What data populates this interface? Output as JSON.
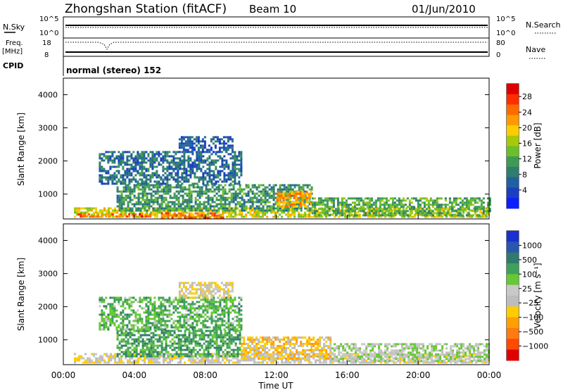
{
  "header": {
    "title": "Zhongshan Station (fitACF)",
    "beam": "Beam 10",
    "date": "01/Jun/2010"
  },
  "noise_panel": {
    "left_label": "N.Sky",
    "left_ticks": [
      "10^5",
      "10^0"
    ],
    "right_ticks": [
      "10^5",
      "10^0"
    ],
    "right_label": "N.Search"
  },
  "freq_panel": {
    "left_label_1": "Freq.",
    "left_label_2": "[MHz]",
    "left_ticks": [
      "18",
      "8"
    ],
    "right_ticks": [
      "80",
      "0"
    ],
    "right_label": "Nave"
  },
  "cpid": {
    "label": "CPID",
    "value": "normal (stereo) 152"
  },
  "chart_data": [
    {
      "type": "heatmap",
      "name": "power",
      "ylabel": "Slant Range [km]",
      "ylim": [
        250,
        4500
      ],
      "yticks": [
        "1000",
        "2000",
        "3000",
        "4000"
      ],
      "xlim_hours": [
        0,
        24
      ],
      "colorbar_label": "Power [dB]",
      "colorbar_ticks": [
        "28",
        "24",
        "20",
        "16",
        "12",
        "8",
        "4"
      ],
      "colorbar_colors": [
        "#dd0000",
        "#ff2d00",
        "#ff6a00",
        "#ff9a00",
        "#ffcc00",
        "#a8c80a",
        "#6bbf2a",
        "#3e9a55",
        "#2f7d6d",
        "#2060a0",
        "#1a3fc0",
        "#0a1eff"
      ],
      "regions": [
        {
          "x0": 0.6,
          "x1": 24,
          "y0": 300,
          "y1": 600,
          "value": 18
        },
        {
          "x0": 0.8,
          "x1": 5,
          "y0": 300,
          "y1": 420,
          "value": 26
        },
        {
          "x0": 5.5,
          "x1": 9,
          "y0": 300,
          "y1": 450,
          "value": 25
        },
        {
          "x0": 3,
          "x1": 14,
          "y0": 500,
          "y1": 1300,
          "value": 11
        },
        {
          "x0": 12,
          "x1": 14,
          "y0": 600,
          "y1": 1100,
          "value": 22
        },
        {
          "x0": 14,
          "x1": 24,
          "y0": 350,
          "y1": 900,
          "value": 13
        },
        {
          "x0": 2,
          "x1": 10,
          "y0": 1300,
          "y1": 2300,
          "value": 8
        },
        {
          "x0": 6.5,
          "x1": 9.5,
          "y0": 2300,
          "y1": 2750,
          "value": 6
        }
      ]
    },
    {
      "type": "heatmap",
      "name": "velocity",
      "ylabel": "Slant Range [km]",
      "ylim": [
        250,
        4500
      ],
      "yticks": [
        "1000",
        "2000",
        "3000",
        "4000"
      ],
      "xlim_hours": [
        0,
        24
      ],
      "colorbar_label": "Velocity [m s⁻¹]",
      "colorbar_ticks": [
        "1000",
        "500",
        "100",
        "25",
        "−25",
        "−100",
        "−500",
        "−1000"
      ],
      "colorbar_colors": [
        "#1a2fd0",
        "#2a56b0",
        "#2f7a6a",
        "#3ea05a",
        "#66c834",
        "#c8c8c8",
        "#bdbdbd",
        "#ffcc00",
        "#ffa000",
        "#ff7a10",
        "#ff4a00",
        "#e00000"
      ],
      "regions": [
        {
          "x0": 0.6,
          "x1": 24,
          "y0": 300,
          "y1": 600,
          "value": -100
        },
        {
          "x0": 3,
          "x1": 10,
          "y0": 500,
          "y1": 1300,
          "value": 500
        },
        {
          "x0": 10,
          "x1": 15,
          "y0": 400,
          "y1": 1100,
          "value": -300
        },
        {
          "x0": 15,
          "x1": 24,
          "y0": 350,
          "y1": 900,
          "value": 150
        },
        {
          "x0": 2,
          "x1": 10,
          "y0": 1300,
          "y1": 2300,
          "value": 400
        },
        {
          "x0": 6.5,
          "x1": 9.5,
          "y0": 2300,
          "y1": 2750,
          "value": -150
        }
      ]
    }
  ],
  "xaxis": {
    "label": "Time UT",
    "ticks": [
      "00:00",
      "04:00",
      "08:00",
      "12:00",
      "16:00",
      "20:00",
      "00:00"
    ]
  }
}
